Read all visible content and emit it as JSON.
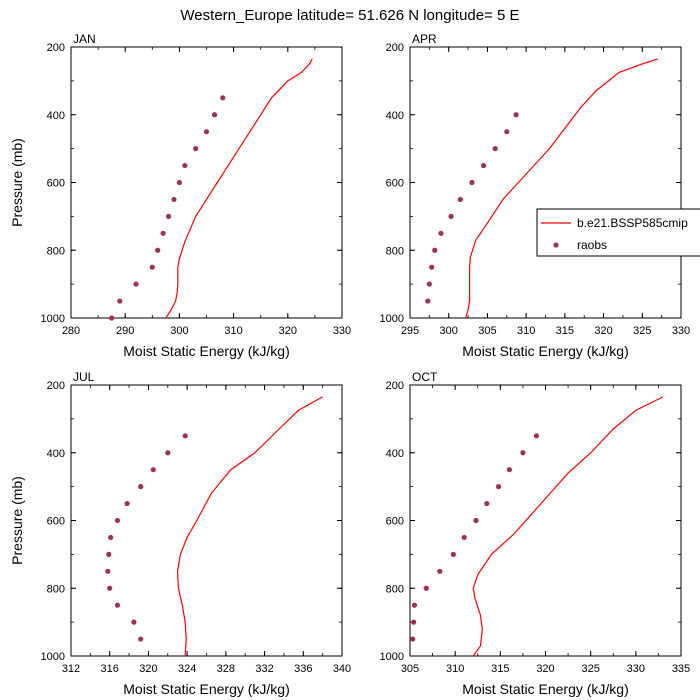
{
  "figure": {
    "title": "Western_Europe  latitude= 51.626 N longitude= 5 E",
    "legend": {
      "placement": "right of APR panel",
      "items": [
        {
          "label": "b.e21.BSSP585cmip",
          "style": "line",
          "color": "#ff0000"
        },
        {
          "label": "raobs",
          "style": "marker",
          "color": "#a0305a"
        }
      ]
    }
  },
  "chart_data": [
    {
      "type": "scatter",
      "panel": "JAN",
      "xlabel": "Moist Static Energy (kJ/kg)",
      "ylabel": "Pressure (mb)",
      "xlim": [
        280,
        330
      ],
      "ylim": [
        1000,
        200
      ],
      "xticks": [
        280,
        290,
        300,
        310,
        320,
        330
      ],
      "yticks": [
        200,
        400,
        600,
        800,
        1000
      ],
      "series": [
        {
          "name": "b.e21.BSSP585cmip",
          "kind": "line",
          "color": "#ff0000",
          "points": [
            [
              297.5,
              1000
            ],
            [
              298.5,
              975
            ],
            [
              299.3,
              950
            ],
            [
              299.6,
              925
            ],
            [
              299.7,
              900
            ],
            [
              299.7,
              850
            ],
            [
              300,
              825
            ],
            [
              301,
              775
            ],
            [
              303,
              700
            ],
            [
              305,
              650
            ],
            [
              307,
              600
            ],
            [
              309,
              550
            ],
            [
              311,
              500
            ],
            [
              313,
              450
            ],
            [
              315,
              400
            ],
            [
              317,
              350
            ],
            [
              320,
              300
            ],
            [
              322.5,
              275
            ],
            [
              324,
              250
            ],
            [
              324.5,
              235
            ]
          ]
        },
        {
          "name": "raobs",
          "kind": "marker",
          "color": "#a0305a",
          "points": [
            [
              287.5,
              1000
            ],
            [
              289,
              950
            ],
            [
              292,
              900
            ],
            [
              295,
              850
            ],
            [
              296,
              800
            ],
            [
              297,
              750
            ],
            [
              298,
              700
            ],
            [
              299,
              650
            ],
            [
              300,
              600
            ],
            [
              301,
              550
            ],
            [
              303,
              500
            ],
            [
              305,
              450
            ],
            [
              306.5,
              400
            ],
            [
              308,
              350
            ]
          ]
        }
      ]
    },
    {
      "type": "scatter",
      "panel": "APR",
      "xlabel": "Moist Static Energy (kJ/kg)",
      "ylabel": "",
      "xlim": [
        295,
        330
      ],
      "ylim": [
        1000,
        200
      ],
      "xticks": [
        295,
        300,
        305,
        310,
        315,
        320,
        325,
        330
      ],
      "yticks": [
        200,
        400,
        600,
        800,
        1000
      ],
      "series": [
        {
          "name": "b.e21.BSSP585cmip",
          "kind": "line",
          "color": "#ff0000",
          "points": [
            [
              302.2,
              1000
            ],
            [
              302.5,
              975
            ],
            [
              302.7,
              950
            ],
            [
              302.7,
              900
            ],
            [
              302.7,
              850
            ],
            [
              302.8,
              820
            ],
            [
              303.5,
              770
            ],
            [
              305,
              720
            ],
            [
              307,
              650
            ],
            [
              309,
              600
            ],
            [
              311,
              550
            ],
            [
              313,
              500
            ],
            [
              315,
              440
            ],
            [
              317,
              380
            ],
            [
              319,
              330
            ],
            [
              322,
              275
            ],
            [
              325,
              250
            ],
            [
              327,
              235
            ]
          ]
        },
        {
          "name": "raobs",
          "kind": "marker",
          "color": "#a0305a",
          "points": [
            [
              297.3,
              950
            ],
            [
              297.5,
              900
            ],
            [
              297.8,
              850
            ],
            [
              298.2,
              800
            ],
            [
              299,
              750
            ],
            [
              300.3,
              700
            ],
            [
              301.5,
              650
            ],
            [
              303,
              600
            ],
            [
              304.5,
              550
            ],
            [
              306,
              500
            ],
            [
              307.5,
              450
            ],
            [
              308.7,
              400
            ]
          ]
        }
      ]
    },
    {
      "type": "scatter",
      "panel": "JUL",
      "xlabel": "Moist Static Energy (kJ/kg)",
      "ylabel": "Pressure (mb)",
      "xlim": [
        312,
        340
      ],
      "ylim": [
        1000,
        200
      ],
      "xticks": [
        312,
        316,
        320,
        324,
        328,
        332,
        336,
        340
      ],
      "yticks": [
        200,
        400,
        600,
        800,
        1000
      ],
      "series": [
        {
          "name": "b.e21.BSSP585cmip",
          "kind": "line",
          "color": "#ff0000",
          "points": [
            [
              323.8,
              1000
            ],
            [
              323.9,
              950
            ],
            [
              323.8,
              900
            ],
            [
              323.5,
              850
            ],
            [
              323.1,
              800
            ],
            [
              323,
              750
            ],
            [
              323.3,
              700
            ],
            [
              324,
              650
            ],
            [
              325,
              600
            ],
            [
              326.5,
              520
            ],
            [
              328.5,
              450
            ],
            [
              331,
              400
            ],
            [
              333.5,
              330
            ],
            [
              335.5,
              275
            ],
            [
              338,
              235
            ]
          ]
        },
        {
          "name": "raobs",
          "kind": "marker",
          "color": "#a0305a",
          "points": [
            [
              319.2,
              950
            ],
            [
              318.5,
              900
            ],
            [
              316.8,
              850
            ],
            [
              316,
              800
            ],
            [
              315.8,
              750
            ],
            [
              315.9,
              700
            ],
            [
              316.1,
              650
            ],
            [
              316.8,
              600
            ],
            [
              317.8,
              550
            ],
            [
              319.2,
              500
            ],
            [
              320.5,
              450
            ],
            [
              322,
              400
            ],
            [
              323.8,
              350
            ]
          ]
        }
      ]
    },
    {
      "type": "scatter",
      "panel": "OCT",
      "xlabel": "Moist Static Energy (kJ/kg)",
      "ylabel": "",
      "xlim": [
        305,
        335
      ],
      "ylim": [
        1000,
        200
      ],
      "xticks": [
        305,
        310,
        315,
        320,
        325,
        330,
        335
      ],
      "yticks": [
        200,
        400,
        600,
        800,
        1000
      ],
      "series": [
        {
          "name": "b.e21.BSSP585cmip",
          "kind": "line",
          "color": "#ff0000",
          "points": [
            [
              312,
              1000
            ],
            [
              312.8,
              970
            ],
            [
              313,
              920
            ],
            [
              312.8,
              880
            ],
            [
              312.2,
              830
            ],
            [
              312,
              800
            ],
            [
              312.5,
              760
            ],
            [
              314,
              700
            ],
            [
              316.5,
              640
            ],
            [
              318.5,
              580
            ],
            [
              320.5,
              520
            ],
            [
              322.5,
              460
            ],
            [
              325,
              400
            ],
            [
              327.5,
              330
            ],
            [
              330,
              275
            ],
            [
              333,
              235
            ]
          ]
        },
        {
          "name": "raobs",
          "kind": "marker",
          "color": "#a0305a",
          "points": [
            [
              305.3,
              950
            ],
            [
              305.4,
              900
            ],
            [
              305.5,
              850
            ],
            [
              306.8,
              800
            ],
            [
              308.3,
              750
            ],
            [
              309.8,
              700
            ],
            [
              311,
              650
            ],
            [
              312.3,
              600
            ],
            [
              313.5,
              550
            ],
            [
              314.8,
              500
            ],
            [
              316,
              450
            ],
            [
              317.5,
              400
            ],
            [
              319,
              350
            ]
          ]
        }
      ]
    }
  ]
}
